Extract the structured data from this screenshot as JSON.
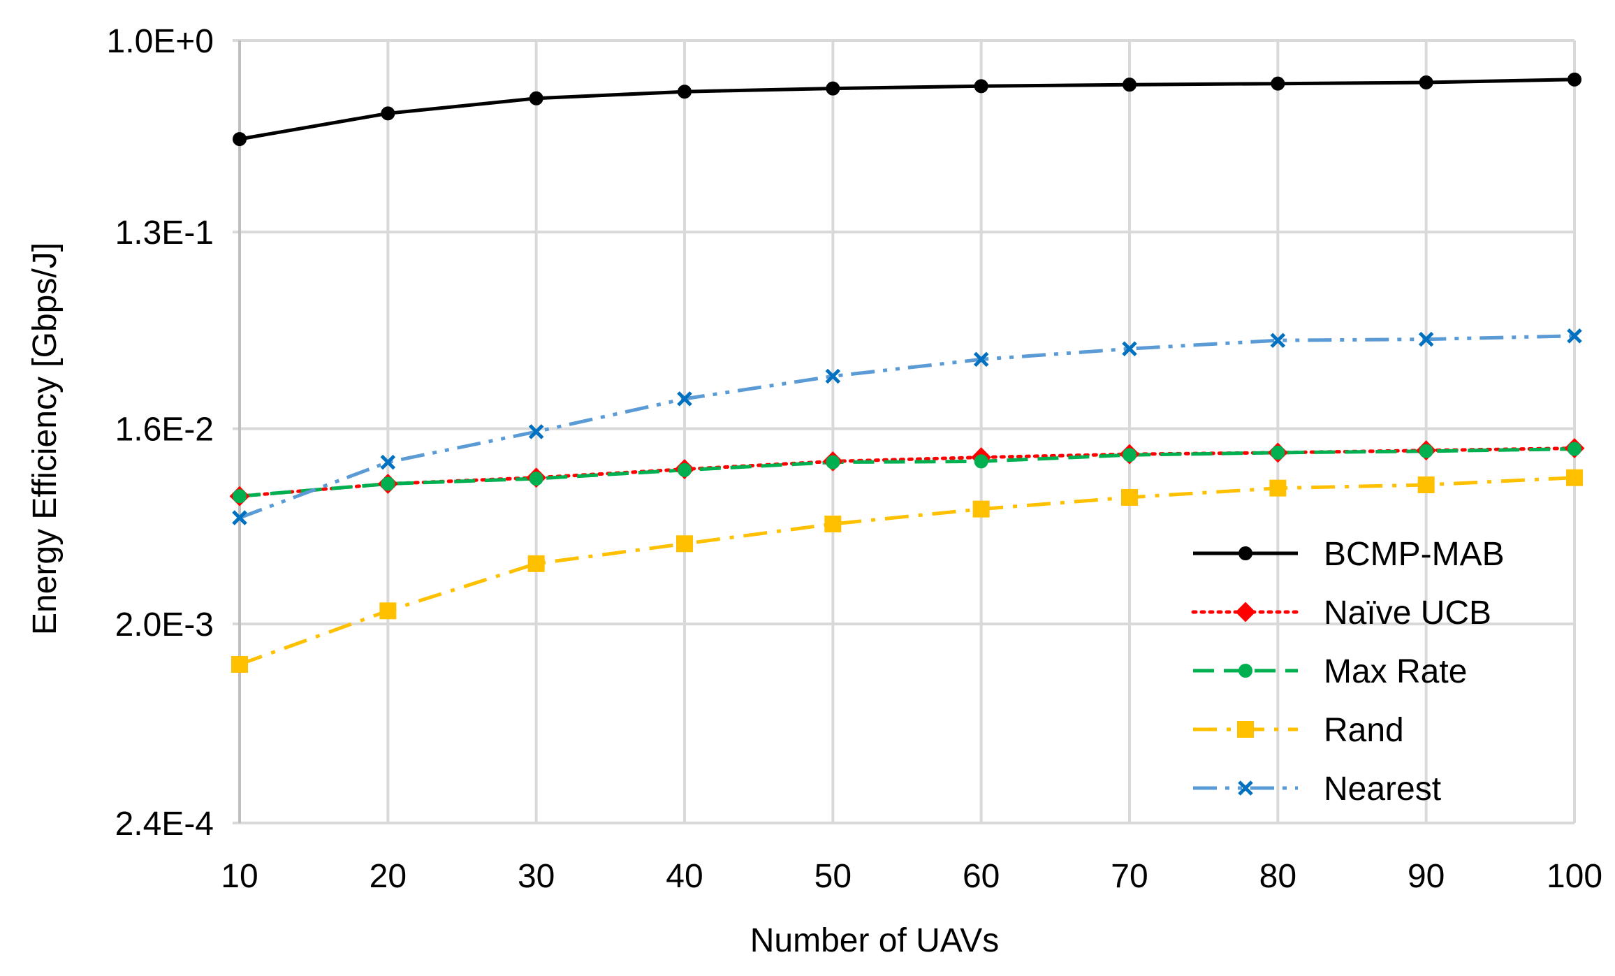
{
  "chart_data": {
    "type": "line",
    "title": "",
    "xlabel": "Number of UAVs",
    "ylabel": "Energy Efficiency [Gbps/J]",
    "yscale": "log",
    "x": [
      10,
      20,
      30,
      40,
      50,
      60,
      70,
      80,
      90,
      100
    ],
    "x_ticks": [
      "10",
      "20",
      "30",
      "40",
      "50",
      "60",
      "70",
      "80",
      "90",
      "100"
    ],
    "y_ticks": [
      {
        "value": 1.0,
        "label": "1.0E+0"
      },
      {
        "value": 0.13,
        "label": "1.3E-1"
      },
      {
        "value": 0.016,
        "label": "1.6E-2"
      },
      {
        "value": 0.002,
        "label": "2.0E-3"
      },
      {
        "value": 0.00024,
        "label": "2.4E-4"
      }
    ],
    "xlim": [
      10,
      100
    ],
    "ylim": [
      0.00024,
      1.0
    ],
    "grid": true,
    "legend_position": "bottom-right",
    "series": [
      {
        "name": "BCMP-MAB",
        "color": "#000000",
        "dash": "solid",
        "marker": "circle",
        "values": [
          0.35,
          0.46,
          0.54,
          0.58,
          0.6,
          0.615,
          0.625,
          0.632,
          0.64,
          0.66
        ]
      },
      {
        "name": "Naïve UCB",
        "color": "#ff0000",
        "dash": "dotted",
        "marker": "diamond",
        "values": [
          0.0078,
          0.0089,
          0.0095,
          0.0104,
          0.0113,
          0.0118,
          0.0122,
          0.0124,
          0.0127,
          0.013
        ]
      },
      {
        "name": "Max Rate",
        "color": "#00b050",
        "dash": "dashed",
        "marker": "circle",
        "values": [
          0.0078,
          0.0089,
          0.0094,
          0.0103,
          0.0112,
          0.0113,
          0.0121,
          0.0124,
          0.0126,
          0.0129
        ]
      },
      {
        "name": "Rand",
        "color": "#ffc000",
        "dash": "dashdot",
        "marker": "square",
        "values": [
          0.0013,
          0.0023,
          0.0038,
          0.0047,
          0.0058,
          0.0068,
          0.0077,
          0.0085,
          0.0088,
          0.0095
        ]
      },
      {
        "name": "Nearest",
        "color": "#5b9bd5",
        "dash": "dashdotdot",
        "marker": "x",
        "marker_color": "#0070c0",
        "values": [
          0.0062,
          0.0112,
          0.0155,
          0.022,
          0.028,
          0.0335,
          0.0375,
          0.041,
          0.0415,
          0.043
        ]
      }
    ]
  }
}
